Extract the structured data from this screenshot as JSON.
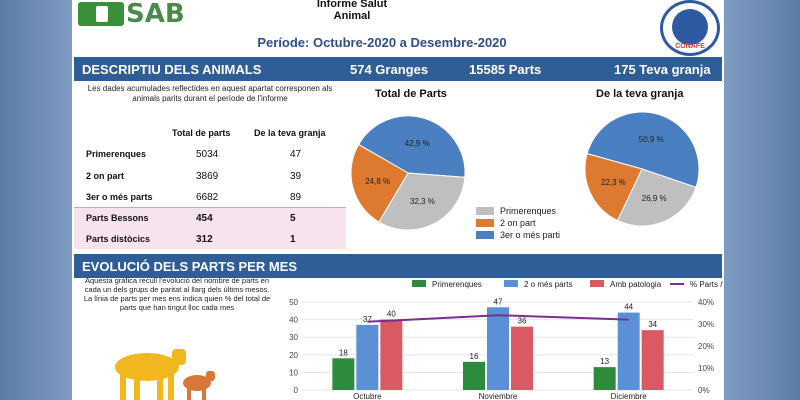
{
  "header": {
    "logo_text": "SAB",
    "report_title_line1": "Informe Salut",
    "report_title_line2": "Animal",
    "period": "Període: Octubre-2020 a Desembre-2020",
    "seal_label": "CONAFE"
  },
  "section1": {
    "title": "DESCRIPTIU DELS ANIMALS",
    "granges": "574 Granges",
    "parts": "15585 Parts",
    "teva_granja": "175 Teva granja",
    "intro": "Les dades acumulades reflectides en aquest apartat corresponen als animals parits durant el període de l'informe",
    "col_total": "Total de parts",
    "col_granja": "De la teva granja",
    "rows": [
      {
        "label": "Primerenques",
        "total": "5034",
        "granja": "47"
      },
      {
        "label": "2 on part",
        "total": "3869",
        "granja": "39"
      },
      {
        "label": "3er o més parts",
        "total": "6682",
        "granja": "89"
      },
      {
        "label": "Parts Bessons",
        "total": "454",
        "granja": "5"
      },
      {
        "label": "Parts distòcics",
        "total": "312",
        "granja": "1"
      }
    ]
  },
  "pies": {
    "colors": {
      "primerenques": "#bfbfbf",
      "segon": "#dd7a2f",
      "tercer": "#4a7fc1"
    },
    "total": {
      "title": "Total de Parts",
      "slices": [
        {
          "name": "3er o més parti",
          "value": 42.9,
          "label": "42,9 %"
        },
        {
          "name": "Primerenques",
          "value": 32.3,
          "label": "32,3 %"
        },
        {
          "name": "2 on part",
          "value": 24.8,
          "label": "24,8 %"
        }
      ]
    },
    "granja": {
      "title": "De la teva granja",
      "slices": [
        {
          "name": "3er o més parti",
          "value": 50.9,
          "label": "50,9 %"
        },
        {
          "name": "Primerenques",
          "value": 26.9,
          "label": "26,9 %"
        },
        {
          "name": "2 on part",
          "value": 22.3,
          "label": "22,3 %"
        }
      ]
    },
    "legend": [
      "Primerenques",
      "2 on part",
      "3er o més parti"
    ]
  },
  "section2": {
    "title": "EVOLUCIÓ DELS PARTS PER MES",
    "text": "Aquesta gràfica recull l'evolució del nombre de parts en cada un dels grups de paritat al llarg dels últims mesos. La línia de parts per mes ens indica quien % del total de parts que han tingut lloc cada mes"
  },
  "chart_data": {
    "type": "bar",
    "categories": [
      "Octubre",
      "Noviembre",
      "Diciembre"
    ],
    "series": [
      {
        "name": "Primerenques",
        "values": [
          18,
          16,
          13
        ],
        "color": "#2e8b3e"
      },
      {
        "name": "2 o més parts",
        "values": [
          37,
          47,
          44
        ],
        "color": "#5b8fd6"
      },
      {
        "name": "Amb patologia",
        "values": [
          40,
          36,
          34
        ],
        "color": "#d95a63"
      }
    ],
    "line_series": {
      "name": "% Parts / mes",
      "values": [
        31,
        34,
        32
      ],
      "color": "#7a2f8f"
    },
    "ylim_left": [
      0,
      50
    ],
    "yticks_left": [
      "0",
      "10",
      "20",
      "30",
      "40",
      "50"
    ],
    "ylim_right": [
      0,
      40
    ],
    "yticks_right": [
      "0%",
      "10%",
      "20%",
      "30%",
      "40%"
    ],
    "legend_position": "top"
  }
}
